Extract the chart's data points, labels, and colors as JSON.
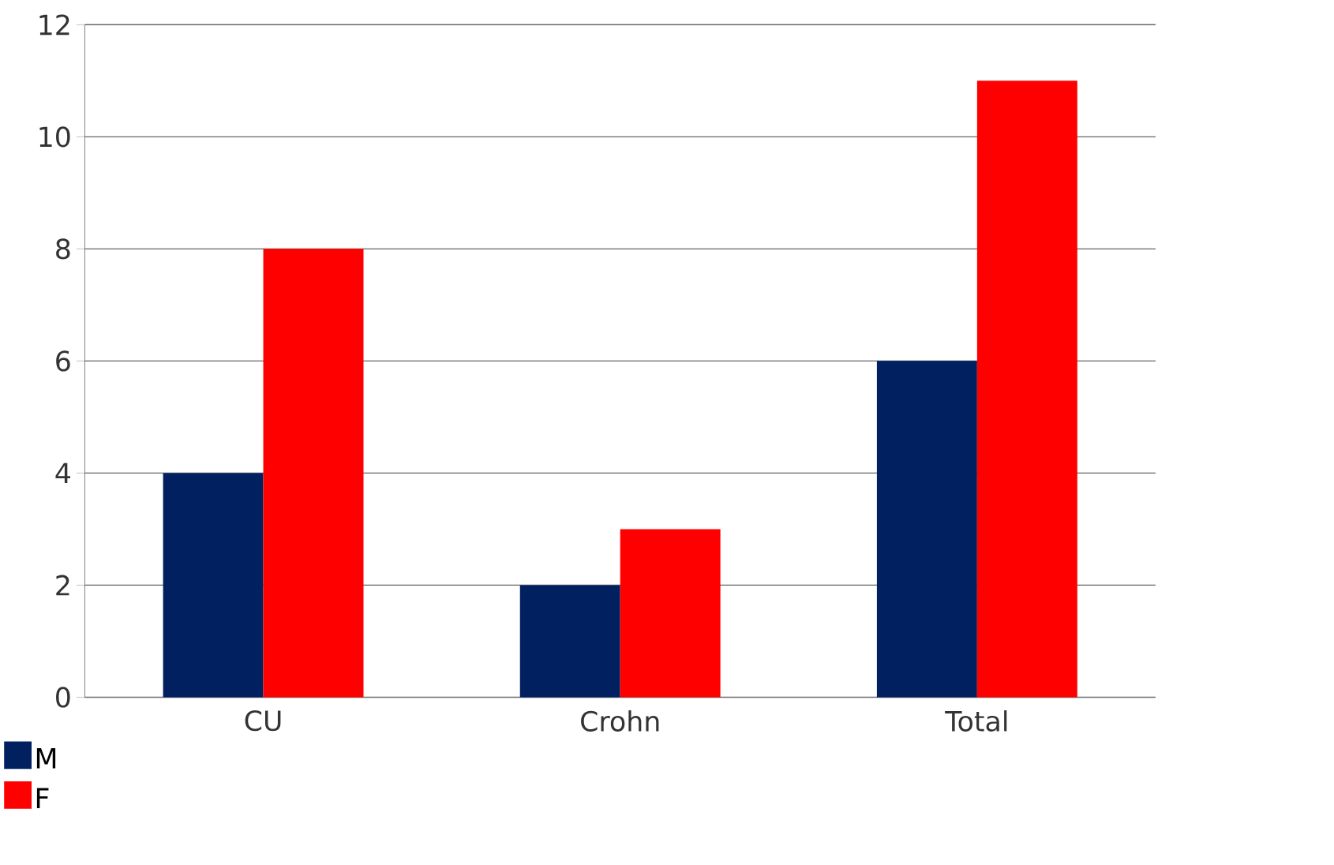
{
  "chart_data": {
    "type": "bar",
    "categories": [
      "CU",
      "Crohn",
      "Total"
    ],
    "series": [
      {
        "name": "M",
        "color": "#002060",
        "values": [
          4,
          2,
          6
        ]
      },
      {
        "name": "F",
        "color": "#ff0000",
        "values": [
          8,
          3,
          11
        ]
      }
    ],
    "ylim": [
      0,
      12
    ],
    "yticks": [
      0,
      2,
      4,
      6,
      8,
      10,
      12
    ],
    "grid": "y",
    "legend": "bottom left"
  }
}
